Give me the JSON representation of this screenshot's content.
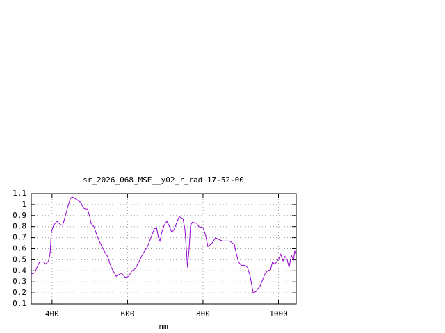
{
  "chart_data": {
    "type": "line",
    "title": "sr_2026_068_MSE__y02_r_rad 17-52-00",
    "x_label": "nm",
    "x": [
      345,
      354,
      360,
      367,
      378,
      383,
      391,
      395,
      398,
      404,
      413,
      422,
      428,
      433,
      441,
      448,
      453,
      468,
      476,
      483,
      489,
      494,
      500,
      503,
      511,
      516,
      525,
      538,
      547,
      557,
      570,
      584,
      594,
      603,
      612,
      621,
      630,
      640,
      653,
      662,
      671,
      677,
      682,
      686,
      691,
      697,
      704,
      710,
      717,
      723,
      732,
      737,
      747,
      752,
      756,
      759,
      763,
      767,
      772,
      783,
      789,
      800,
      807,
      813,
      824,
      833,
      844,
      852,
      870,
      883,
      888,
      894,
      901,
      911,
      918,
      925,
      933,
      940,
      946,
      951,
      957,
      964,
      971,
      979,
      984,
      990,
      995,
      1001,
      1006,
      1012,
      1017,
      1023,
      1028,
      1034,
      1040,
      1043,
      1047
    ],
    "series": [
      {
        "name": "sr_2026_068_MSE__y02_r_rad 17-52-00",
        "color": "#9400d3",
        "values": [
          0.37,
          0.38,
          0.43,
          0.48,
          0.48,
          0.46,
          0.49,
          0.56,
          0.75,
          0.81,
          0.85,
          0.82,
          0.81,
          0.87,
          0.97,
          1.05,
          1.07,
          1.04,
          1.02,
          0.97,
          0.96,
          0.96,
          0.89,
          0.83,
          0.8,
          0.75,
          0.67,
          0.58,
          0.53,
          0.43,
          0.35,
          0.38,
          0.34,
          0.35,
          0.4,
          0.42,
          0.48,
          0.55,
          0.62,
          0.7,
          0.78,
          0.79,
          0.7,
          0.67,
          0.75,
          0.81,
          0.85,
          0.81,
          0.75,
          0.77,
          0.85,
          0.89,
          0.87,
          0.78,
          0.59,
          0.43,
          0.59,
          0.81,
          0.84,
          0.83,
          0.8,
          0.79,
          0.72,
          0.62,
          0.65,
          0.7,
          0.68,
          0.67,
          0.67,
          0.64,
          0.56,
          0.48,
          0.45,
          0.45,
          0.43,
          0.35,
          0.2,
          0.21,
          0.24,
          0.26,
          0.31,
          0.37,
          0.4,
          0.41,
          0.48,
          0.46,
          0.48,
          0.51,
          0.55,
          0.49,
          0.53,
          0.5,
          0.43,
          0.54,
          0.5,
          0.58,
          0.54
        ]
      }
    ],
    "xlim": [
      345,
      1047
    ],
    "xticks": [
      400,
      600,
      800,
      1000
    ],
    "ylim": [
      0.1,
      1.1
    ],
    "yticks": [
      0.1,
      0.2,
      0.3,
      0.4,
      0.5,
      0.6,
      0.7,
      0.8,
      0.9,
      1,
      1.1
    ],
    "grid": true
  }
}
